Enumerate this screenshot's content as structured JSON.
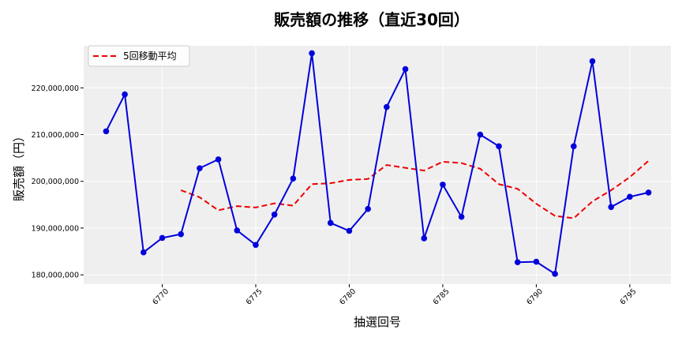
{
  "chart_data": {
    "type": "line",
    "title": "販売額の推移（直近30回）",
    "xlabel": "抽選回号",
    "ylabel": "販売額（円）",
    "xlim": [
      6765.8,
      6797.2
    ],
    "ylim": [
      178000000,
      229000000
    ],
    "x_ticks": [
      6770,
      6775,
      6780,
      6785,
      6790,
      6795
    ],
    "y_ticks": [
      180000000,
      190000000,
      200000000,
      210000000,
      220000000
    ],
    "y_tick_labels": [
      "180,000,000",
      "190,000,000",
      "200,000,000",
      "210,000,000",
      "220,000,000"
    ],
    "grid": true,
    "legend_position": "top-left",
    "colors": {
      "series": "#0000dd",
      "moving_average": "#ee0000",
      "plot_bg": "#efefef",
      "grid": "#ffffff"
    },
    "x": [
      6767,
      6768,
      6769,
      6770,
      6771,
      6772,
      6773,
      6774,
      6775,
      6776,
      6777,
      6778,
      6779,
      6780,
      6781,
      6782,
      6783,
      6784,
      6785,
      6786,
      6787,
      6788,
      6789,
      6790,
      6791,
      6792,
      6793,
      6794,
      6795,
      6796
    ],
    "series": [
      {
        "values": [
          210700000,
          218600000,
          184800000,
          187900000,
          188700000,
          202800000,
          204700000,
          189500000,
          186400000,
          192900000,
          200600000,
          227400000,
          191100000,
          189400000,
          194100000,
          215900000,
          224000000,
          187800000,
          199300000,
          192400000,
          210000000,
          207500000,
          182700000,
          182800000,
          180200000,
          207500000,
          225700000,
          194500000,
          196700000,
          197600000
        ]
      },
      {
        "name": "5回移動平均",
        "style": "dashed",
        "values": [
          null,
          null,
          null,
          null,
          198100000,
          196600000,
          193800000,
          194700000,
          194400000,
          195300000,
          194800000,
          199400000,
          199600000,
          200300000,
          200500000,
          203500000,
          202900000,
          202300000,
          204200000,
          203900000,
          202700000,
          199400000,
          198400000,
          195200000,
          192600000,
          192100000,
          195700000,
          198100000,
          200900000,
          204400000
        ]
      }
    ]
  }
}
